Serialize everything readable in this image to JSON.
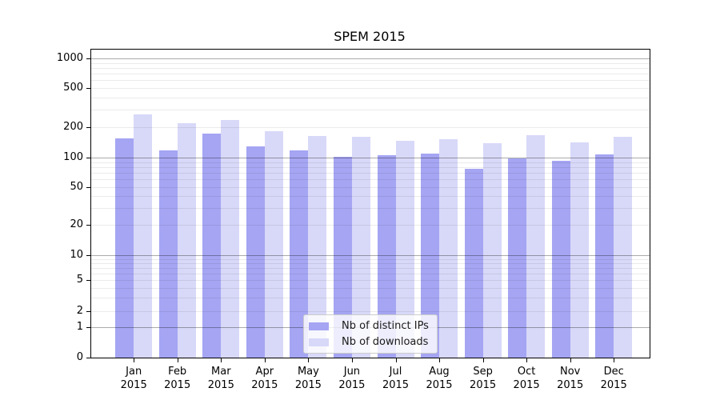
{
  "chart_data": {
    "type": "bar",
    "title": "SPEM 2015",
    "categories": [
      "Jan",
      "Feb",
      "Mar",
      "Apr",
      "May",
      "Jun",
      "Jul",
      "Aug",
      "Sep",
      "Oct",
      "Nov",
      "Dec"
    ],
    "category_year": "2015",
    "series": [
      {
        "name": "Nb of distinct IPs",
        "color": "#a5a5f3",
        "values": [
          155,
          117,
          173,
          130,
          117,
          102,
          105,
          110,
          77,
          99,
          93,
          107
        ]
      },
      {
        "name": "Nb of downloads",
        "color": "#d8d8f8",
        "values": [
          270,
          220,
          235,
          183,
          163,
          160,
          148,
          152,
          138,
          167,
          141,
          162
        ]
      }
    ],
    "xlabel": "",
    "ylabel": "",
    "yscale": "symlog",
    "ylim": [
      0,
      1200
    ],
    "yticks": [
      0,
      1,
      2,
      5,
      10,
      20,
      50,
      100,
      200,
      500,
      1000
    ],
    "grid": "both",
    "major_grid_values": [
      1,
      10,
      100,
      1000
    ],
    "minor_grid_values": [
      2,
      3,
      4,
      5,
      6,
      7,
      8,
      9,
      20,
      30,
      40,
      50,
      60,
      70,
      80,
      90,
      200,
      300,
      400,
      500,
      600,
      700,
      800,
      900
    ],
    "legend_position": "lower-center-inside"
  }
}
